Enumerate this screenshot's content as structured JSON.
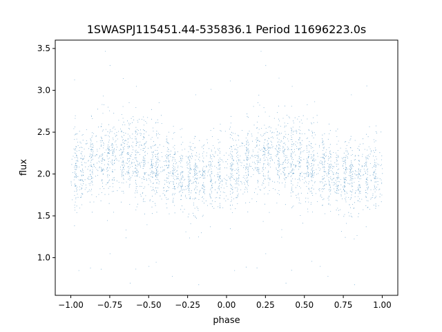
{
  "chart_data": {
    "type": "scatter",
    "title": "1SWASPJ115451.44-535836.1 Period 11696223.0s",
    "xlabel": "phase",
    "ylabel": "flux",
    "xlim": [
      -1.1,
      1.1
    ],
    "ylim": [
      0.55,
      3.6
    ],
    "xticks": [
      -1.0,
      -0.75,
      -0.5,
      -0.25,
      0.0,
      0.25,
      0.5,
      0.75,
      1.0
    ],
    "xtick_labels": [
      "−1.00",
      "−0.75",
      "−0.50",
      "−0.25",
      "0.00",
      "0.25",
      "0.50",
      "0.75",
      "1.00"
    ],
    "yticks": [
      1.0,
      1.5,
      2.0,
      2.5,
      3.0,
      3.5
    ],
    "ytick_labels": [
      "1.0",
      "1.5",
      "2.0",
      "2.5",
      "3.0",
      "3.5"
    ],
    "grid": false,
    "marker_color": "#1f77b4",
    "phase_range": [
      -1.0,
      1.0
    ],
    "profile": {
      "phase": [
        0.0,
        0.1,
        0.2,
        0.25,
        0.3,
        0.4,
        0.5,
        0.6,
        0.7,
        0.8,
        0.9,
        1.0
      ],
      "median_flux": [
        2.03,
        2.15,
        2.2,
        2.22,
        2.22,
        2.18,
        2.12,
        2.05,
        2.0,
        1.97,
        1.98,
        2.02
      ],
      "spread": [
        0.22,
        0.22,
        0.24,
        0.25,
        0.25,
        0.24,
        0.22,
        0.21,
        0.2,
        0.22,
        0.22,
        0.22
      ]
    },
    "vertical_streaks": [
      0.03,
      0.07,
      0.13,
      0.2,
      0.24,
      0.27,
      0.33,
      0.37,
      0.42,
      0.47,
      0.52,
      0.55,
      0.62,
      0.66,
      0.71,
      0.76,
      0.8,
      0.85,
      0.9,
      0.95
    ],
    "notable_points": {
      "x": [
        -0.78,
        -0.75,
        0.22,
        0.25,
        -0.58,
        0.42,
        -0.2,
        0.8,
        -0.75,
        0.25,
        -0.5,
        0.6,
        -0.35,
        0.65,
        -0.95,
        0.05,
        -0.62,
        0.38,
        -0.18,
        0.82
      ],
      "y": [
        3.47,
        3.3,
        3.47,
        3.3,
        3.05,
        3.05,
        2.95,
        2.95,
        1.05,
        1.05,
        0.9,
        0.9,
        0.78,
        0.78,
        0.85,
        0.85,
        0.7,
        0.7,
        0.68,
        0.68
      ]
    }
  }
}
